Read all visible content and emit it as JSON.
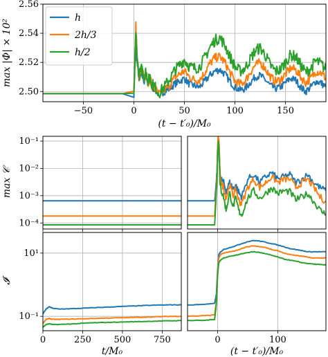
{
  "colors": {
    "h": "#1f77b4",
    "h23": "#ff7f0e",
    "h2": "#2ca02c"
  },
  "chart_data": [
    {
      "type": "line",
      "panel": "top",
      "ylabel": "max |Φ| × 10²",
      "xlabel": "(t − t′₀)/M₀",
      "xlim": [
        -90,
        190
      ],
      "ylim": [
        2.493,
        2.56
      ],
      "yscale": "linear",
      "grid": true,
      "legend": "top-left",
      "xticks": [
        -50,
        0,
        50,
        100,
        150
      ],
      "xtick_labels": [
        "−50",
        "0",
        "50",
        "100",
        "150"
      ],
      "yticks": [
        2.5,
        2.52,
        2.54,
        2.56
      ],
      "ytick_labels": [
        "2.50",
        "2.52",
        "2.54",
        "2.56"
      ],
      "series": [
        {
          "name": "h",
          "color_key": "h",
          "x": [
            -90,
            0,
            1,
            2,
            3,
            5,
            8,
            10,
            12,
            14,
            16,
            18,
            20,
            25,
            30,
            35,
            40,
            45,
            50,
            55,
            60,
            65,
            70,
            75,
            80,
            85,
            90,
            95,
            100,
            105,
            110,
            115,
            120,
            125,
            130,
            135,
            140,
            145,
            150,
            155,
            160,
            165,
            170,
            175,
            180,
            185,
            190
          ],
          "y": [
            2.4985,
            2.4985,
            2.515,
            2.53,
            2.521,
            2.509,
            2.513,
            2.507,
            2.511,
            2.505,
            2.508,
            2.503,
            2.502,
            2.498,
            2.5,
            2.502,
            2.505,
            2.507,
            2.509,
            2.505,
            2.504,
            2.503,
            2.507,
            2.511,
            2.514,
            2.515,
            2.512,
            2.507,
            2.503,
            2.501,
            2.502,
            2.506,
            2.51,
            2.511,
            2.508,
            2.504,
            2.502,
            2.503,
            2.506,
            2.509,
            2.508,
            2.503,
            2.5,
            2.503,
            2.507,
            2.506,
            2.503
          ]
        },
        {
          "name": "2h/3",
          "color_key": "h23",
          "x": [
            -90,
            0,
            1,
            2,
            3,
            5,
            8,
            10,
            12,
            14,
            16,
            18,
            20,
            25,
            30,
            35,
            40,
            45,
            50,
            55,
            60,
            65,
            70,
            75,
            80,
            85,
            90,
            95,
            100,
            105,
            110,
            115,
            120,
            125,
            130,
            135,
            140,
            145,
            150,
            155,
            160,
            165,
            170,
            175,
            180,
            185,
            190
          ],
          "y": [
            2.4985,
            2.4985,
            2.522,
            2.545,
            2.527,
            2.51,
            2.515,
            2.509,
            2.513,
            2.506,
            2.509,
            2.504,
            2.503,
            2.498,
            2.501,
            2.504,
            2.509,
            2.512,
            2.514,
            2.51,
            2.508,
            2.508,
            2.513,
            2.519,
            2.523,
            2.524,
            2.52,
            2.513,
            2.507,
            2.505,
            2.507,
            2.513,
            2.518,
            2.52,
            2.516,
            2.51,
            2.507,
            2.508,
            2.512,
            2.516,
            2.515,
            2.51,
            2.506,
            2.509,
            2.514,
            2.513,
            2.509
          ]
        },
        {
          "name": "h/2",
          "color_key": "h2",
          "x": [
            -90,
            0,
            1,
            2,
            3,
            5,
            8,
            10,
            12,
            14,
            16,
            18,
            20,
            25,
            30,
            35,
            40,
            45,
            50,
            55,
            60,
            65,
            70,
            75,
            80,
            85,
            90,
            95,
            100,
            105,
            110,
            115,
            120,
            125,
            130,
            135,
            140,
            145,
            150,
            155,
            160,
            165,
            170,
            175,
            180,
            185,
            190
          ],
          "y": [
            2.4985,
            2.4985,
            2.52,
            2.54,
            2.525,
            2.511,
            2.516,
            2.51,
            2.514,
            2.507,
            2.51,
            2.505,
            2.504,
            2.499,
            2.503,
            2.508,
            2.514,
            2.518,
            2.522,
            2.517,
            2.516,
            2.517,
            2.523,
            2.53,
            2.535,
            2.537,
            2.532,
            2.524,
            2.517,
            2.514,
            2.516,
            2.522,
            2.528,
            2.53,
            2.525,
            2.518,
            2.514,
            2.515,
            2.52,
            2.525,
            2.524,
            2.518,
            2.513,
            2.516,
            2.521,
            2.519,
            2.515
          ]
        }
      ]
    },
    {
      "type": "line",
      "panel": "middle-left",
      "ylabel": "max 𝒞",
      "xlim": [
        0,
        870
      ],
      "ylim": [
        6e-05,
        0.15
      ],
      "yscale": "log",
      "grid": true,
      "yticks": [
        0.0001,
        0.001,
        0.01,
        0.1
      ],
      "ytick_labels": [
        "10⁻⁴",
        "10⁻³",
        "10⁻²",
        "10⁻¹"
      ],
      "xticks": [
        0,
        250,
        500,
        750
      ],
      "series": [
        {
          "name": "h",
          "color_key": "h",
          "x": [
            0,
            870
          ],
          "y": [
            0.00065,
            0.00065
          ]
        },
        {
          "name": "2h/3",
          "color_key": "h23",
          "x": [
            0,
            870
          ],
          "y": [
            0.00018,
            0.00018
          ]
        },
        {
          "name": "h/2",
          "color_key": "h2",
          "x": [
            0,
            870
          ],
          "y": [
            8.5e-05,
            8.5e-05
          ]
        }
      ]
    },
    {
      "type": "line",
      "panel": "middle-right",
      "xlim": [
        -50,
        180
      ],
      "ylim": [
        6e-05,
        0.15
      ],
      "yscale": "log",
      "grid": true,
      "xticks": [
        0,
        100
      ],
      "series": [
        {
          "name": "h",
          "color_key": "h",
          "x": [
            -50,
            -5,
            -4,
            -1,
            0,
            1,
            2,
            3,
            4,
            6,
            10,
            14,
            20,
            26,
            30,
            36,
            40,
            50,
            60,
            70,
            80,
            90,
            100,
            110,
            120,
            130,
            140,
            150,
            160,
            170,
            180
          ],
          "y": [
            0.00065,
            0.00065,
            0.001,
            0.008,
            0.05,
            0.12,
            0.09,
            0.03,
            0.006,
            0.004,
            0.003,
            0.0015,
            0.003,
            0.0018,
            0.0025,
            0.0012,
            0.0009,
            0.004,
            0.006,
            0.003,
            0.005,
            0.007,
            0.004,
            0.005,
            0.006,
            0.003,
            0.004,
            0.006,
            0.003,
            0.002,
            0.0015
          ]
        },
        {
          "name": "2h/3",
          "color_key": "h23",
          "x": [
            -50,
            -5,
            -4,
            -1,
            0,
            1,
            2,
            3,
            4,
            6,
            10,
            14,
            20,
            26,
            30,
            36,
            40,
            50,
            60,
            70,
            80,
            90,
            100,
            110,
            120,
            130,
            140,
            150,
            160,
            170,
            180
          ],
          "y": [
            0.00018,
            0.00018,
            0.0004,
            0.006,
            0.06,
            0.14,
            0.09,
            0.03,
            0.005,
            0.003,
            0.002,
            0.0008,
            0.0025,
            0.001,
            0.0018,
            0.0006,
            0.0005,
            0.002,
            0.004,
            0.002,
            0.003,
            0.005,
            0.003,
            0.004,
            0.004,
            0.002,
            0.003,
            0.004,
            0.002,
            0.0009,
            0.0006
          ]
        },
        {
          "name": "h/2",
          "color_key": "h2",
          "x": [
            -50,
            -5,
            -4,
            -1,
            0,
            1,
            2,
            3,
            4,
            6,
            10,
            14,
            20,
            26,
            30,
            36,
            40,
            50,
            60,
            70,
            80,
            90,
            100,
            110,
            120,
            130,
            140,
            150,
            160,
            170,
            180
          ],
          "y": [
            8.5e-05,
            8.5e-05,
            0.0002,
            0.004,
            0.04,
            0.1,
            0.06,
            0.015,
            0.003,
            0.0015,
            0.0009,
            0.0003,
            0.0012,
            0.0004,
            0.0008,
            0.00025,
            0.0002,
            0.0008,
            0.0015,
            0.0008,
            0.0012,
            0.002,
            0.0012,
            0.0015,
            0.0014,
            0.0007,
            0.0009,
            0.0012,
            0.0006,
            0.0003,
            0.0002
          ]
        }
      ]
    },
    {
      "type": "line",
      "panel": "bottom-left",
      "ylabel": "𝓘",
      "xlabel": "t/M₀",
      "xlim": [
        0,
        870
      ],
      "ylim": [
        0.035,
        45
      ],
      "yscale": "log",
      "grid": true,
      "xticks": [
        0,
        250,
        500,
        750
      ],
      "xtick_labels": [
        "0",
        "250",
        "500",
        "750"
      ],
      "yticks": [
        0.1,
        10
      ],
      "ytick_labels": [
        "10⁻¹",
        "10¹"
      ],
      "series": [
        {
          "name": "h",
          "color_key": "h",
          "x": [
            0,
            20,
            40,
            60,
            100,
            200,
            300,
            400,
            500,
            600,
            700,
            800,
            870
          ],
          "y": [
            0.12,
            0.17,
            0.2,
            0.18,
            0.17,
            0.175,
            0.185,
            0.195,
            0.205,
            0.215,
            0.225,
            0.23,
            0.23
          ]
        },
        {
          "name": "2h/3",
          "color_key": "h23",
          "x": [
            0,
            20,
            40,
            60,
            100,
            200,
            300,
            400,
            500,
            600,
            700,
            800,
            870
          ],
          "y": [
            0.06,
            0.08,
            0.085,
            0.08,
            0.08,
            0.082,
            0.085,
            0.088,
            0.09,
            0.093,
            0.096,
            0.1,
            0.1
          ]
        },
        {
          "name": "h/2",
          "color_key": "h2",
          "x": [
            0,
            20,
            40,
            60,
            100,
            200,
            300,
            400,
            500,
            600,
            700,
            800,
            870
          ],
          "y": [
            0.045,
            0.055,
            0.058,
            0.055,
            0.055,
            0.058,
            0.062,
            0.064,
            0.066,
            0.068,
            0.07,
            0.072,
            0.073
          ]
        }
      ]
    },
    {
      "type": "line",
      "panel": "bottom-right",
      "xlabel": "(t − t′₀)/M₀",
      "xlim": [
        -50,
        180
      ],
      "ylim": [
        0.035,
        45
      ],
      "yscale": "log",
      "grid": true,
      "xticks": [
        0,
        100
      ],
      "xtick_labels": [
        "0",
        "100"
      ],
      "series": [
        {
          "name": "h",
          "color_key": "h",
          "x": [
            -50,
            -20,
            -5,
            -2,
            0,
            2,
            5,
            10,
            20,
            30,
            40,
            50,
            60,
            70,
            80,
            90,
            100,
            110,
            120,
            130,
            140,
            150,
            160,
            170,
            180
          ],
          "y": [
            0.23,
            0.24,
            0.26,
            0.5,
            3,
            9,
            11,
            13,
            15,
            17,
            20,
            23,
            25,
            24,
            22,
            20,
            18,
            16,
            14,
            13,
            12,
            11,
            11,
            11,
            11
          ]
        },
        {
          "name": "2h/3",
          "color_key": "h23",
          "x": [
            -50,
            -20,
            -5,
            -2,
            0,
            2,
            5,
            10,
            20,
            30,
            40,
            50,
            60,
            70,
            80,
            90,
            100,
            110,
            120,
            130,
            140,
            150,
            160,
            170,
            180
          ],
          "y": [
            0.1,
            0.105,
            0.11,
            0.3,
            2.5,
            7,
            9,
            10,
            11,
            12,
            14,
            16,
            17,
            16,
            15,
            13,
            12,
            10,
            9,
            8.5,
            8,
            7.5,
            7,
            7,
            7
          ]
        },
        {
          "name": "h/2",
          "color_key": "h2",
          "x": [
            -50,
            -20,
            -5,
            -2,
            0,
            2,
            5,
            10,
            20,
            30,
            40,
            50,
            60,
            70,
            80,
            90,
            100,
            110,
            120,
            130,
            140,
            150,
            160,
            170,
            180
          ],
          "y": [
            0.073,
            0.075,
            0.08,
            0.25,
            2,
            5,
            6,
            7,
            8,
            8.5,
            9.5,
            10.5,
            11,
            10.5,
            9.5,
            8.5,
            7.5,
            6.5,
            6,
            5.5,
            5,
            4.7,
            4.5,
            4.3,
            4.2
          ]
        }
      ]
    }
  ],
  "legend": {
    "items": [
      {
        "label": "h",
        "color_key": "h"
      },
      {
        "label": "2h/3",
        "color_key": "h23"
      },
      {
        "label": "h/2",
        "color_key": "h2"
      }
    ]
  }
}
